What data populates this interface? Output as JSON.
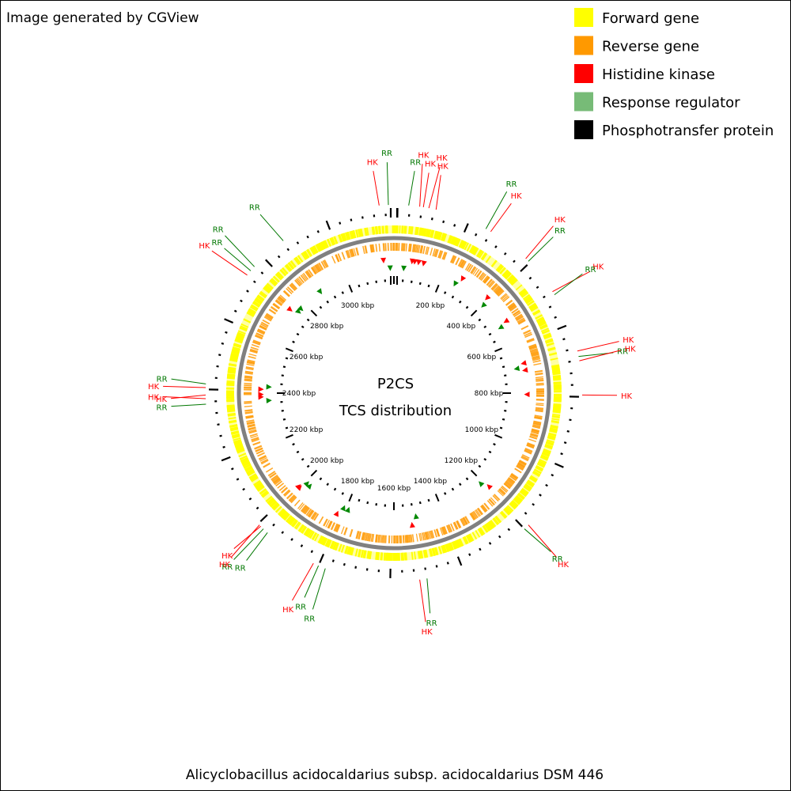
{
  "header_note": "Image generated by CGView",
  "title_line1": "P2CS",
  "title_line2": "TCS distribution",
  "footer": "Alicyclobacillus acidocaldarius subsp. acidocaldarius DSM 446",
  "colors": {
    "forward": "#ffff00",
    "reverse": "#ff9900",
    "hk": "#ff0000",
    "rr": "#77bb77",
    "rr_text": "#007700",
    "phospho": "#000000",
    "backbone": "#808080"
  },
  "legend": [
    {
      "label": "Forward gene",
      "color": "#ffff00"
    },
    {
      "label": "Reverse gene",
      "color": "#ff9900"
    },
    {
      "label": "Histidine kinase",
      "color": "#ff0000"
    },
    {
      "label": "Response regulator",
      "color": "#77bb77"
    },
    {
      "label": "Phosphotransfer protein",
      "color": "#000000"
    }
  ],
  "genome_length_kbp": 3200,
  "scale_labels": [
    {
      "kbp": 200,
      "label": "200 kbp"
    },
    {
      "kbp": 400,
      "label": "400 kbp"
    },
    {
      "kbp": 600,
      "label": "600 kbp"
    },
    {
      "kbp": 800,
      "label": "800 kbp"
    },
    {
      "kbp": 1000,
      "label": "1000 kbp"
    },
    {
      "kbp": 1200,
      "label": "1200 kbp"
    },
    {
      "kbp": 1400,
      "label": "1400 kbp"
    },
    {
      "kbp": 1600,
      "label": "1600 kbp"
    },
    {
      "kbp": 1800,
      "label": "1800 kbp"
    },
    {
      "kbp": 2000,
      "label": "2000 kbp"
    },
    {
      "kbp": 2200,
      "label": "2200 kbp"
    },
    {
      "kbp": 2400,
      "label": "2400 kbp"
    },
    {
      "kbp": 2600,
      "label": "2600 kbp"
    },
    {
      "kbp": 2800,
      "label": "2800 kbp"
    },
    {
      "kbp": 3000,
      "label": "3000 kbp"
    }
  ],
  "features": [
    {
      "type": "HK",
      "kbp": 3160,
      "label": "HK"
    },
    {
      "type": "RR",
      "kbp": 3185,
      "label": "RR"
    },
    {
      "type": "RR",
      "kbp": 40,
      "label": "RR"
    },
    {
      "type": "HK",
      "kbp": 70,
      "label": "HK"
    },
    {
      "type": "HK",
      "kbp": 80,
      "label": "HK"
    },
    {
      "type": "HK",
      "kbp": 95,
      "label": "HK"
    },
    {
      "type": "HK",
      "kbp": 115,
      "label": "HK"
    },
    {
      "type": "RR",
      "kbp": 260,
      "label": "RR"
    },
    {
      "type": "HK",
      "kbp": 275,
      "label": "HK"
    },
    {
      "type": "HK",
      "kbp": 395,
      "label": "HK"
    },
    {
      "type": "RR",
      "kbp": 405,
      "label": "RR"
    },
    {
      "type": "HK",
      "kbp": 510,
      "label": "HK"
    },
    {
      "type": "RR",
      "kbp": 520,
      "label": "RR"
    },
    {
      "type": "HK",
      "kbp": 685,
      "label": "HK"
    },
    {
      "type": "RR",
      "kbp": 700,
      "label": "RR"
    },
    {
      "type": "HK",
      "kbp": 712,
      "label": "HK"
    },
    {
      "type": "HK",
      "kbp": 805,
      "label": "HK"
    },
    {
      "type": "HK",
      "kbp": 1195,
      "label": "HK"
    },
    {
      "type": "RR",
      "kbp": 1210,
      "label": "RR"
    },
    {
      "type": "HK",
      "kbp": 1530,
      "label": "HK"
    },
    {
      "type": "RR",
      "kbp": 1510,
      "label": "RR"
    },
    {
      "type": "RR",
      "kbp": 1790,
      "label": "RR"
    },
    {
      "type": "RR",
      "kbp": 1810,
      "label": "RR"
    },
    {
      "type": "HK",
      "kbp": 1825,
      "label": "HK"
    },
    {
      "type": "RR",
      "kbp": 1975,
      "label": "RR"
    },
    {
      "type": "RR",
      "kbp": 1990,
      "label": "RR"
    },
    {
      "type": "HK",
      "kbp": 2000,
      "label": "HK"
    },
    {
      "type": "HK",
      "kbp": 2005,
      "label": "HK"
    },
    {
      "type": "RR",
      "kbp": 2370,
      "label": "RR"
    },
    {
      "type": "HK",
      "kbp": 2385,
      "label": "HK"
    },
    {
      "type": "HK",
      "kbp": 2395,
      "label": "HK"
    },
    {
      "type": "HK",
      "kbp": 2415,
      "label": "HK"
    },
    {
      "type": "RR",
      "kbp": 2425,
      "label": "RR"
    },
    {
      "type": "HK",
      "kbp": 2745,
      "label": "HK"
    },
    {
      "type": "RR",
      "kbp": 2760,
      "label": "RR"
    },
    {
      "type": "RR",
      "kbp": 2775,
      "label": "RR"
    },
    {
      "type": "RR",
      "kbp": 2880,
      "label": "RR"
    }
  ]
}
